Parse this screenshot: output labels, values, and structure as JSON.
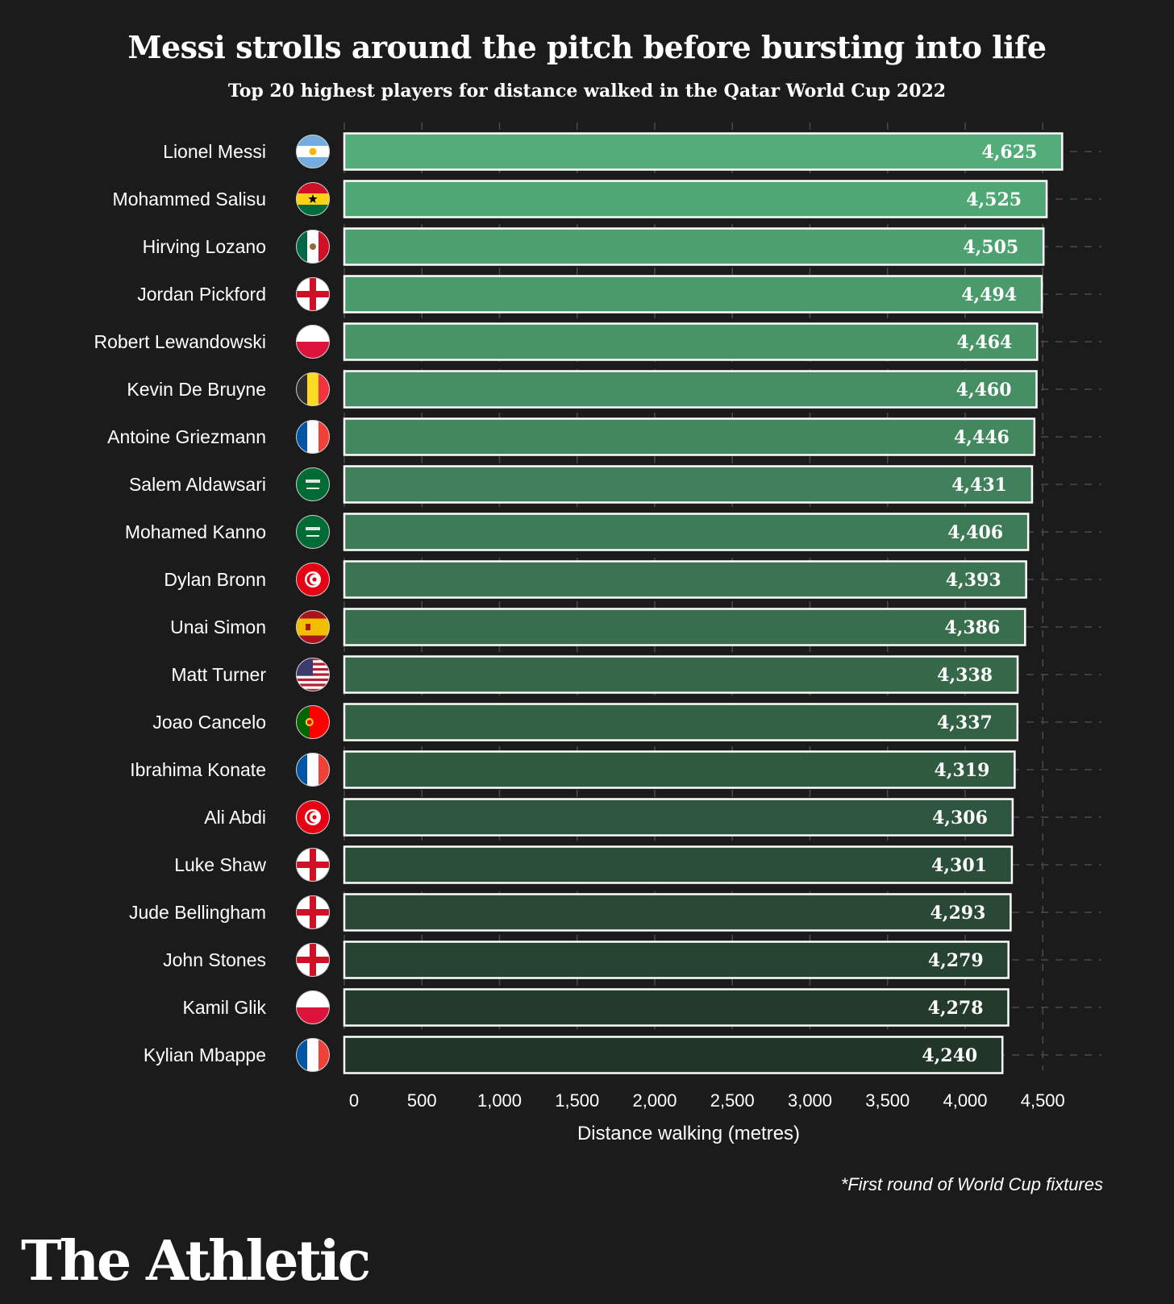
{
  "chart_data": {
    "type": "bar",
    "orientation": "horizontal",
    "title": "Messi strolls around the pitch before bursting into life",
    "subtitle": "Top 20 highest players for distance walked in the Qatar World Cup 2022",
    "xlabel": "Distance walking (metres)",
    "ylabel": "",
    "xlim": [
      0,
      4800
    ],
    "x_ticks": [
      0,
      500,
      1000,
      1500,
      2000,
      2500,
      3000,
      3500,
      4000,
      4500
    ],
    "x_tick_labels": [
      "0",
      "500",
      "1,000",
      "1,500",
      "2,000",
      "2,500",
      "3,000",
      "3,500",
      "4,000",
      "4,500"
    ],
    "grid": true,
    "categories": [
      "Lionel Messi",
      "Mohammed Salisu",
      "Hirving Lozano",
      "Jordan Pickford",
      "Robert Lewandowski",
      "Kevin De Bruyne",
      "Antoine Griezmann",
      "Salem Aldawsari",
      "Mohamed Kanno",
      "Dylan Bronn",
      "Unai Simon",
      "Matt Turner",
      "Joao Cancelo",
      "Ibrahima Konate",
      "Ali Abdi",
      "Luke Shaw",
      "Jude Bellingham",
      "John Stones",
      "Kamil Glik",
      "Kylian Mbappe"
    ],
    "values": [
      4625,
      4525,
      4505,
      4494,
      4464,
      4460,
      4446,
      4431,
      4406,
      4393,
      4386,
      4338,
      4337,
      4319,
      4306,
      4301,
      4293,
      4279,
      4278,
      4240
    ],
    "value_labels": [
      "4,625",
      "4,525",
      "4,505",
      "4,494",
      "4,464",
      "4,460",
      "4,446",
      "4,431",
      "4,406",
      "4,393",
      "4,386",
      "4,338",
      "4,337",
      "4,319",
      "4,306",
      "4,301",
      "4,293",
      "4,279",
      "4,278",
      "4,240"
    ],
    "flags": [
      "argentina",
      "ghana",
      "mexico",
      "england",
      "poland",
      "belgium",
      "france",
      "saudi-arabia",
      "saudi-arabia",
      "tunisia",
      "spain",
      "usa",
      "portugal",
      "france",
      "tunisia",
      "england",
      "england",
      "england",
      "poland",
      "france"
    ],
    "bar_color_top": "#52ad78",
    "bar_color_bottom": "#213528",
    "bar_border_color": "#ffffff",
    "background_color": "#1b1b1b",
    "footnote": "*First round of World Cup fixtures"
  },
  "brand": {
    "logo_text": "The Athletic"
  }
}
